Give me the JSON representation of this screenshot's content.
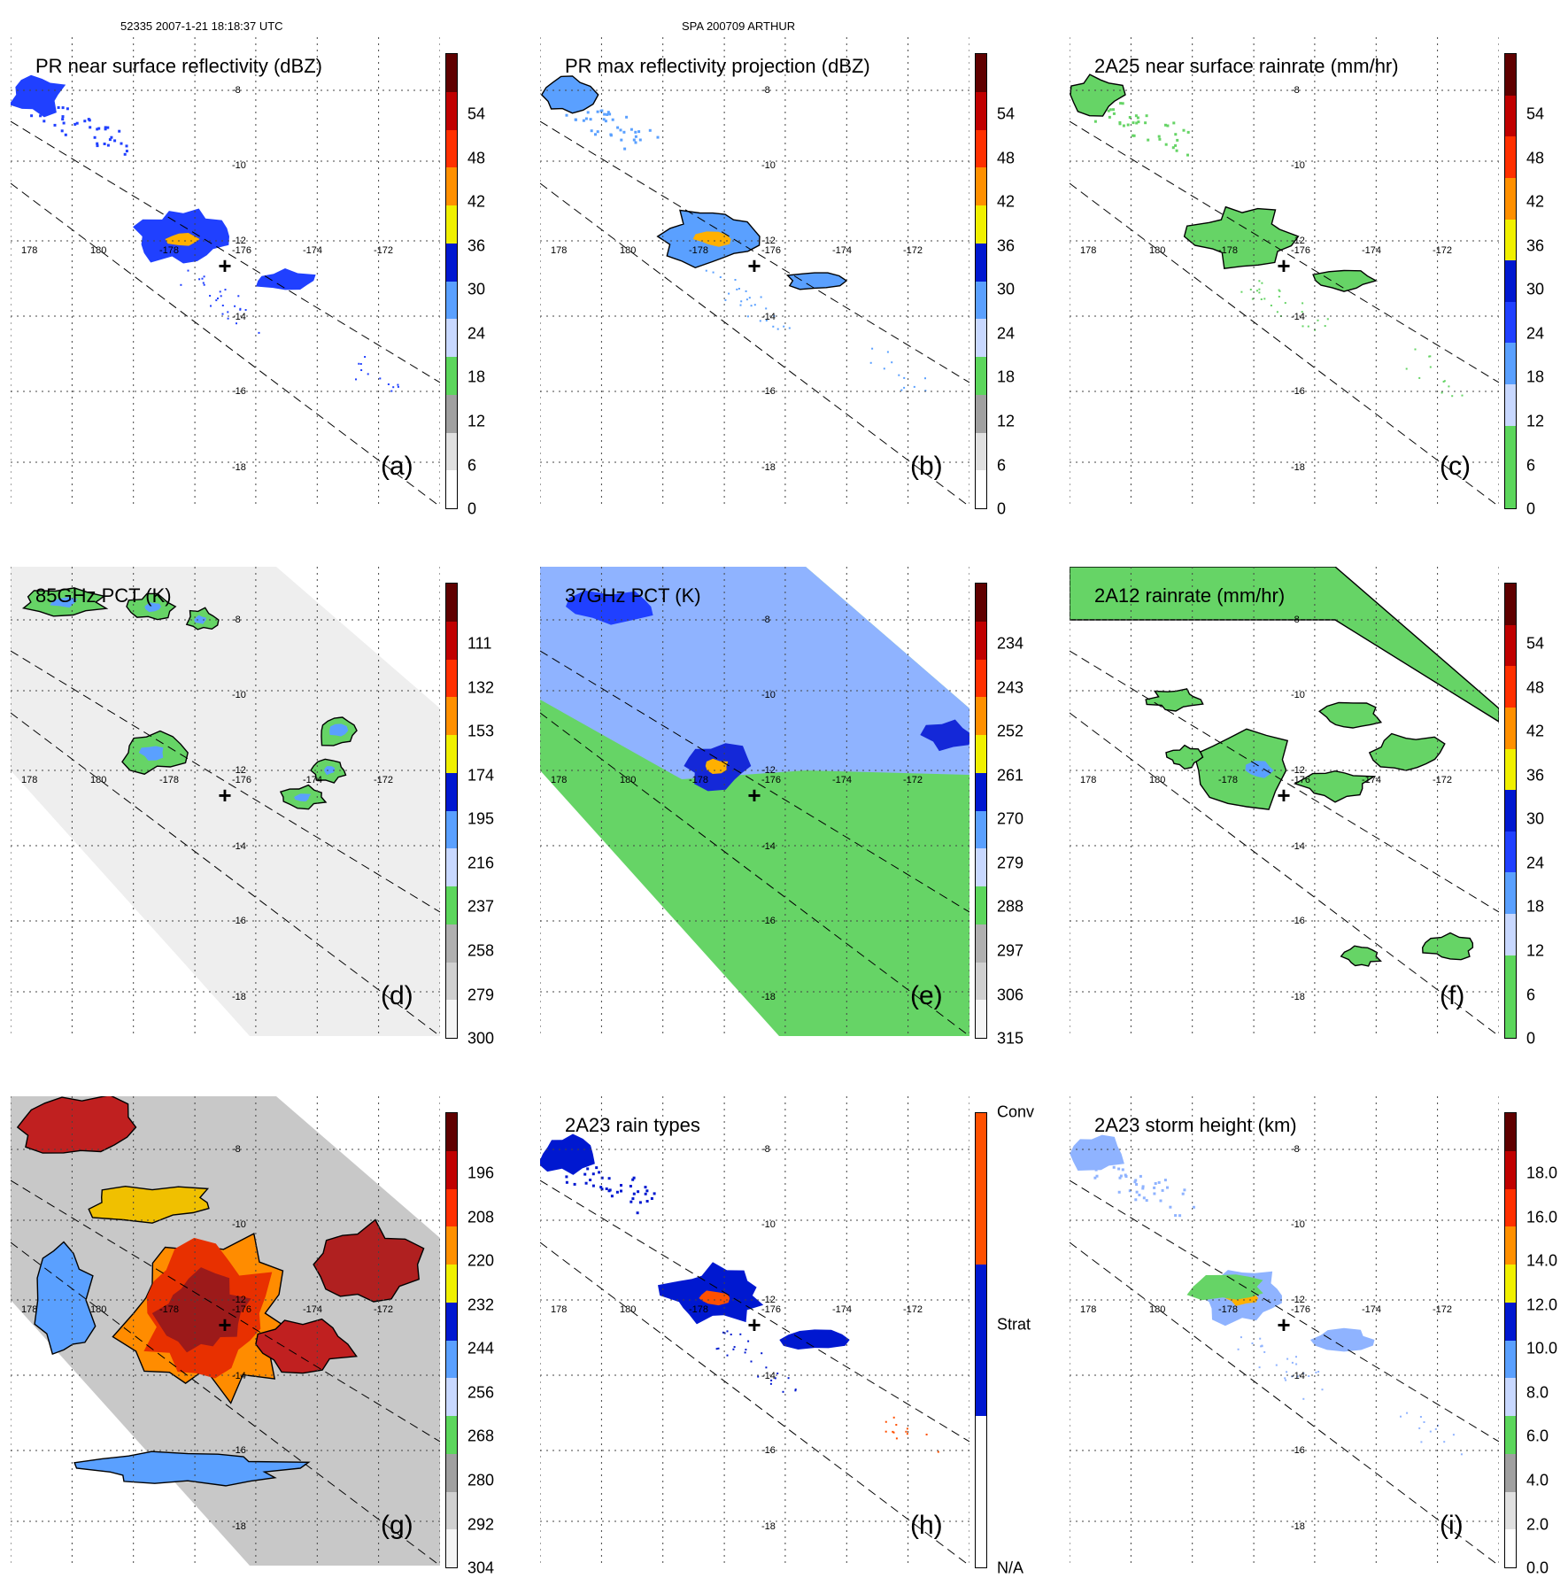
{
  "header": {
    "orbit_time": "52335 2007-1-21 18:18:37 UTC",
    "storm": "SPA 200709 ARTHUR"
  },
  "lon_labels": [
    "178",
    "180",
    "-178",
    "-176",
    "-174",
    "-172"
  ],
  "lat_labels": [
    "-8",
    "-10",
    "-12",
    "-14",
    "-16",
    "-18"
  ],
  "panels": [
    {
      "id": "a",
      "title": "PR near surface reflectivity (dBZ)",
      "letter": "(a)",
      "kind": "swath",
      "fill": "blue",
      "ticks": [
        "0",
        "6",
        "12",
        "18",
        "24",
        "30",
        "36",
        "42",
        "48",
        "54"
      ],
      "colors": [
        "#ffffff",
        "#e0e0e0",
        "#a0a0a0",
        "#5cd65c",
        "#c8d8ff",
        "#5aa0ff",
        "#0018d0",
        "#f0f000",
        "#ff9000",
        "#ff3000",
        "#c00000",
        "#600000"
      ]
    },
    {
      "id": "b",
      "title": "PR max reflectivity projection (dBZ)",
      "letter": "(b)",
      "kind": "swath",
      "fill": "blue-outline",
      "ticks": [
        "0",
        "6",
        "12",
        "18",
        "24",
        "30",
        "36",
        "42",
        "48",
        "54"
      ],
      "colors": [
        "#ffffff",
        "#e0e0e0",
        "#a0a0a0",
        "#5cd65c",
        "#c8d8ff",
        "#5aa0ff",
        "#0018d0",
        "#f0f000",
        "#ff9000",
        "#ff3000",
        "#c00000",
        "#600000"
      ]
    },
    {
      "id": "c",
      "title": "2A25 near surface rainrate (mm/hr)",
      "letter": "(c)",
      "kind": "swath",
      "fill": "green",
      "ticks": [
        "0",
        "6",
        "12",
        "18",
        "24",
        "30",
        "36",
        "42",
        "48",
        "54"
      ],
      "colors": [
        "#5cd65c",
        "#5cd65c",
        "#c8d8ff",
        "#5aa0ff",
        "#2040ff",
        "#0018d0",
        "#f0f000",
        "#ff9000",
        "#ff3000",
        "#c00000",
        "#600000"
      ]
    },
    {
      "id": "d",
      "title": "85GHz PCT (K)",
      "letter": "(d)",
      "kind": "wide",
      "fill": "gray",
      "ticks": [
        "300",
        "279",
        "258",
        "237",
        "216",
        "195",
        "174",
        "153",
        "132",
        "111"
      ],
      "colors": [
        "#f4f4f4",
        "#d0d0d0",
        "#b0b0b0",
        "#5cd65c",
        "#c8d8ff",
        "#5aa0ff",
        "#0018d0",
        "#f0f000",
        "#ff9000",
        "#ff3000",
        "#c00000",
        "#600000"
      ]
    },
    {
      "id": "e",
      "title": "37GHz PCT (K)",
      "letter": "(e)",
      "kind": "wide",
      "fill": "green-blue",
      "ticks": [
        "315",
        "306",
        "297",
        "288",
        "279",
        "270",
        "261",
        "252",
        "243",
        "234"
      ],
      "colors": [
        "#f4f4f4",
        "#d0d0d0",
        "#b0b0b0",
        "#5cd65c",
        "#c8d8ff",
        "#5aa0ff",
        "#0018d0",
        "#f0f000",
        "#ff9000",
        "#ff3000",
        "#c00000",
        "#600000"
      ]
    },
    {
      "id": "f",
      "title": "2A12 rainrate (mm/hr)",
      "letter": "(f)",
      "kind": "wide",
      "fill": "green-white",
      "ticks": [
        "0",
        "6",
        "12",
        "18",
        "24",
        "30",
        "36",
        "42",
        "48",
        "54"
      ],
      "colors": [
        "#5cd65c",
        "#5cd65c",
        "#c8d8ff",
        "#5aa0ff",
        "#2040ff",
        "#0018d0",
        "#f0f000",
        "#ff9000",
        "#ff3000",
        "#c00000",
        "#600000"
      ]
    },
    {
      "id": "g",
      "title": "",
      "letter": "(g)",
      "kind": "wide",
      "fill": "ir",
      "ticks": [
        "304",
        "292",
        "280",
        "268",
        "256",
        "244",
        "232",
        "220",
        "208",
        "196"
      ],
      "colors": [
        "#f4f4f4",
        "#d0d0d0",
        "#a0a0a0",
        "#5cd65c",
        "#c8d8ff",
        "#5aa0ff",
        "#0018d0",
        "#f0f000",
        "#ff9000",
        "#ff3000",
        "#c00000",
        "#600000"
      ]
    },
    {
      "id": "h",
      "title": "2A23 rain types",
      "letter": "(h)",
      "kind": "swath",
      "fill": "types",
      "ticks": [
        "N/A",
        "Strat",
        "Conv"
      ],
      "colors": [
        "#ffffff",
        "#0018d0",
        "#ff5000"
      ]
    },
    {
      "id": "i",
      "title": "2A23 storm height (km)",
      "letter": "(i)",
      "kind": "swath",
      "fill": "height",
      "ticks": [
        "0.0",
        "2.0",
        "4.0",
        "6.0",
        "8.0",
        "10.0",
        "12.0",
        "14.0",
        "16.0",
        "18.0"
      ],
      "colors": [
        "#ffffff",
        "#e0e0e0",
        "#a0a0a0",
        "#5cd65c",
        "#c8d8ff",
        "#5aa0ff",
        "#0018d0",
        "#f0f000",
        "#ff9000",
        "#ff3000",
        "#c00000",
        "#600000"
      ]
    }
  ]
}
